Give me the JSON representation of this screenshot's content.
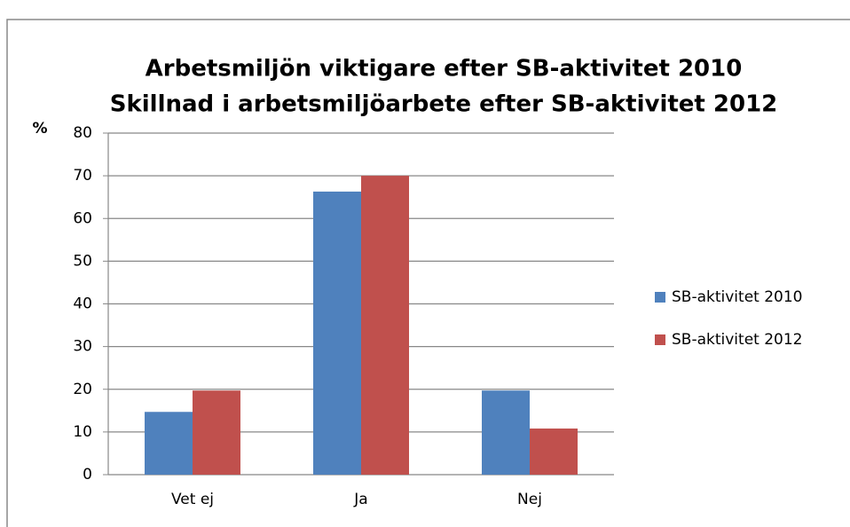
{
  "chart_data": {
    "type": "bar",
    "title": [
      "Arbetsmiljön viktigare efter SB-aktivitet 2010",
      "Skillnad i arbetsmiljöarbete efter SB-aktivitet 2012"
    ],
    "ylabel": "%",
    "categories": [
      "Vet ej",
      "Ja",
      "Nej"
    ],
    "series": [
      {
        "name": "SB-aktivitet 2010",
        "color": "#4f81bd",
        "values": [
          14.7,
          66.3,
          19.7
        ]
      },
      {
        "name": "SB-aktivitet 2012",
        "color": "#c0504d",
        "values": [
          19.7,
          70,
          10.8
        ]
      }
    ],
    "ylim": [
      0,
      80
    ],
    "yticks": [
      0,
      10,
      20,
      30,
      40,
      50,
      60,
      70,
      80
    ],
    "grid": true,
    "legend": "right"
  }
}
